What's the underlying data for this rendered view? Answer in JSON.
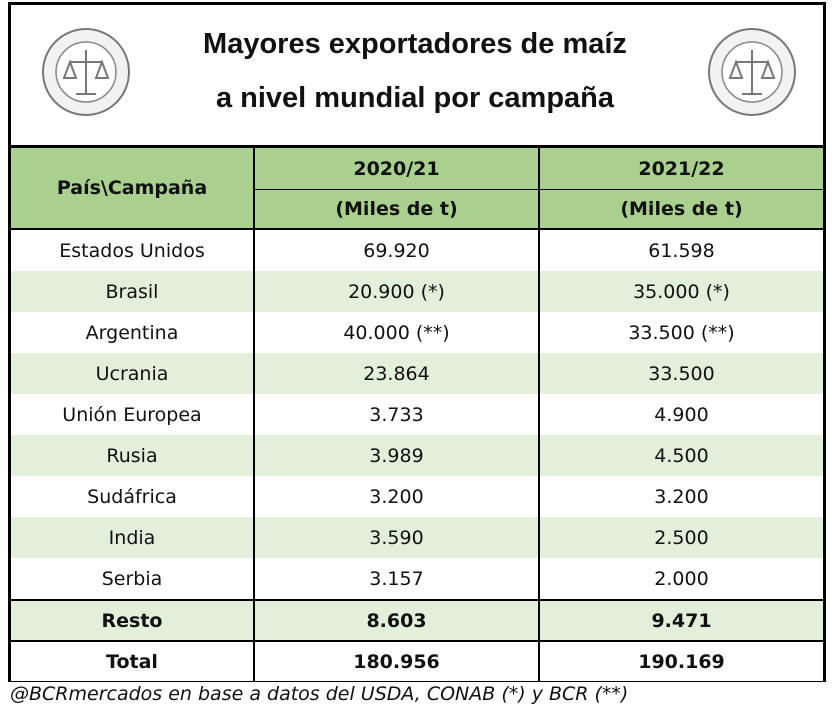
{
  "title": [
    "Mayores exportadores de maíz",
    "a nivel mundial por campaña"
  ],
  "table": {
    "corner": "País\\Campaña",
    "columns": [
      {
        "season": "2020/21",
        "unit": "(Miles de t)"
      },
      {
        "season": "2021/22",
        "unit": "(Miles de t)"
      }
    ],
    "rows": [
      [
        "Estados Unidos",
        "69.920",
        "61.598"
      ],
      [
        "Brasil",
        "20.900 (*)",
        "35.000 (*)"
      ],
      [
        "Argentina",
        "40.000 (**)",
        "33.500 (**)"
      ],
      [
        "Ucrania",
        "23.864",
        "33.500"
      ],
      [
        "Unión Europea",
        "3.733",
        "4.900"
      ],
      [
        "Rusia",
        "3.989",
        "4.500"
      ],
      [
        "Sudáfrica",
        "3.200",
        "3.200"
      ],
      [
        "India",
        "3.590",
        "2.500"
      ],
      [
        "Serbia",
        "3.157",
        "2.000"
      ]
    ],
    "summary": [
      [
        "Resto",
        "8.603",
        "9.471"
      ],
      [
        "Total",
        "180.956",
        "190.169"
      ]
    ]
  },
  "footnote": "@BCRmercados en base a datos del USDA, CONAB (*) y BCR (**)"
}
